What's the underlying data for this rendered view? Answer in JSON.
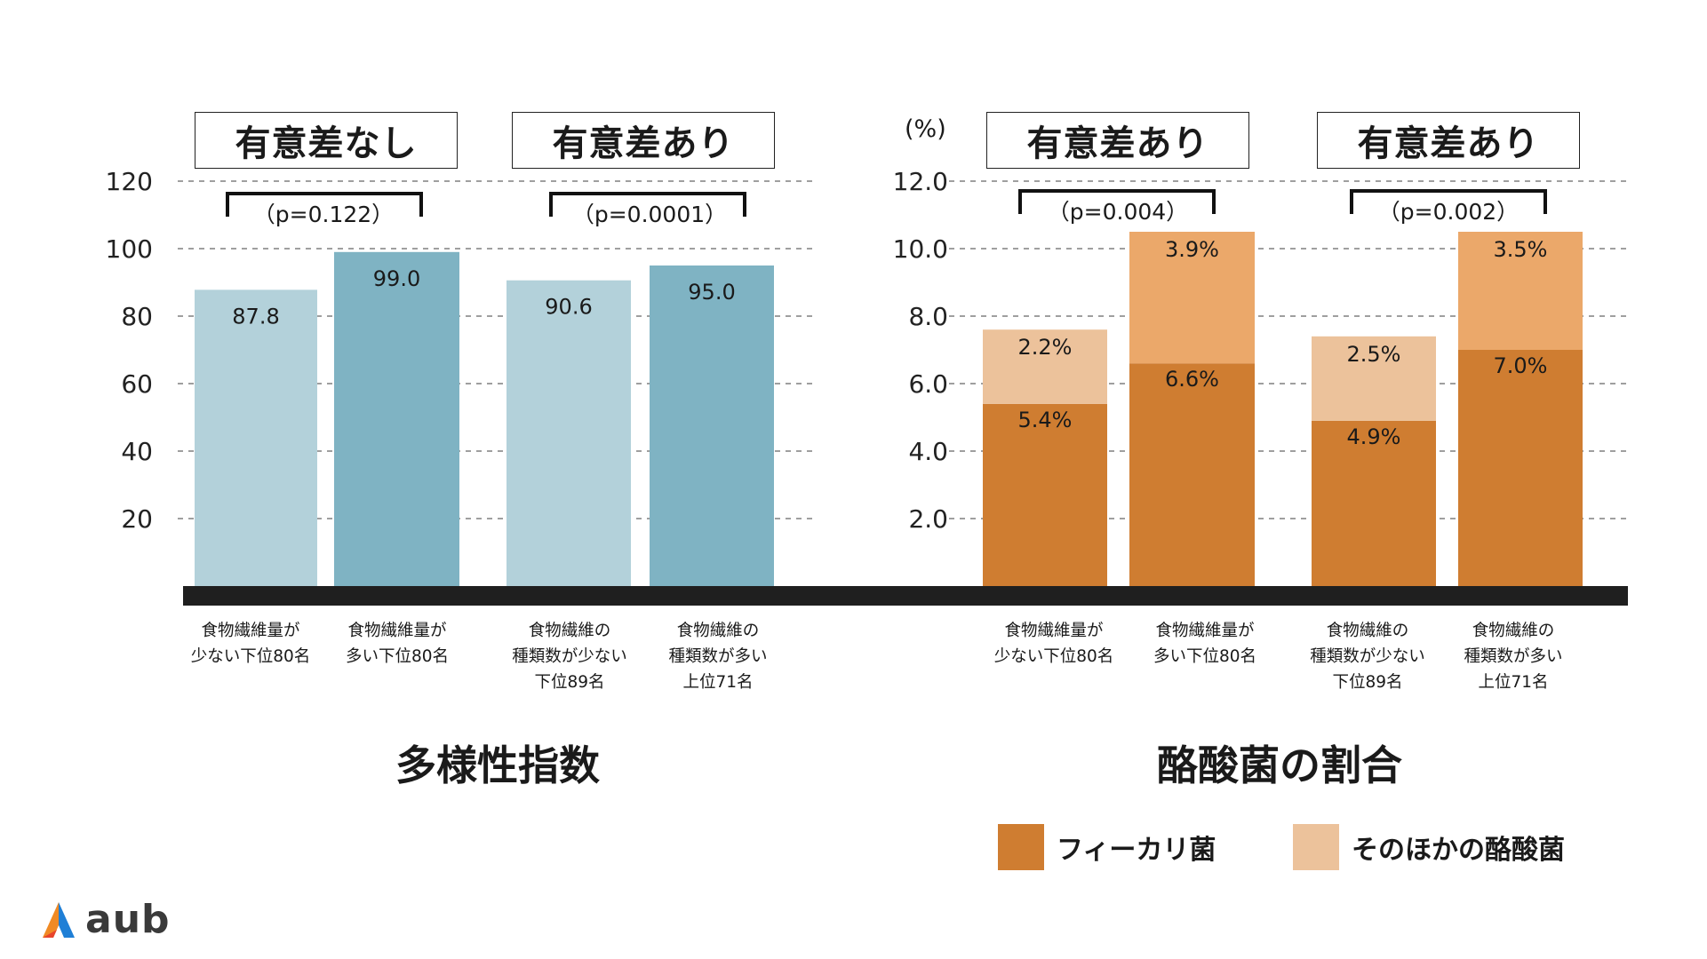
{
  "colors": {
    "diversity_low": "#b3d1da",
    "diversity_high": "#7fb3c3",
    "faecalibacterium": "#cf7d31",
    "other_butyrate": "#ecc29b",
    "other_butyrate_high": "#eba86a",
    "baseline": "#1f1f1f",
    "grid": "#666666"
  },
  "chart_data": [
    {
      "type": "bar",
      "title": "多様性指数",
      "categories": [
        "食物繊維量が\n少ない下位80名",
        "食物繊維量が\n多い下位80名",
        "食物繊維の\n種類数が少ない\n下位89名",
        "食物繊維の\n種類数が多い\n上位71名"
      ],
      "values": [
        87.8,
        99.0,
        90.6,
        95.0
      ],
      "value_labels": [
        "87.8",
        "99.0",
        "90.6",
        "95.0"
      ],
      "y_ticks": [
        "20",
        "40",
        "60",
        "80",
        "100",
        "120"
      ],
      "ylim": [
        0,
        120
      ],
      "grid": true,
      "comparisons": [
        {
          "pair": [
            0,
            1
          ],
          "label": "有意差なし",
          "p": "（p=0.122）"
        },
        {
          "pair": [
            2,
            3
          ],
          "label": "有意差あり",
          "p": "（p=0.0001）"
        }
      ]
    },
    {
      "type": "bar",
      "stacked": true,
      "title": "酪酸菌の割合",
      "unit": "(%)",
      "categories": [
        "食物繊維量が\n少ない下位80名",
        "食物繊維量が\n多い下位80名",
        "食物繊維の\n種類数が少ない\n下位89名",
        "食物繊維の\n種類数が多い\n上位71名"
      ],
      "series": [
        {
          "name": "フィーカリ菌",
          "values": [
            5.4,
            6.6,
            4.9,
            7.0
          ],
          "labels": [
            "5.4%",
            "6.6%",
            "4.9%",
            "7.0%"
          ]
        },
        {
          "name": "そのほかの酪酸菌",
          "values": [
            2.2,
            3.9,
            2.5,
            3.5
          ],
          "labels": [
            "2.2%",
            "3.9%",
            "2.5%",
            "3.5%"
          ]
        }
      ],
      "y_ticks": [
        "2.0",
        "4.0",
        "6.0",
        "8.0",
        "10.0",
        "12.0"
      ],
      "ylim": [
        0,
        12
      ],
      "grid": true,
      "legend_position": "bottom",
      "comparisons": [
        {
          "pair": [
            0,
            1
          ],
          "label": "有意差あり",
          "p": "（p=0.004）"
        },
        {
          "pair": [
            2,
            3
          ],
          "label": "有意差あり",
          "p": "（p=0.002）"
        }
      ]
    }
  ],
  "brand": {
    "name": "aub"
  }
}
